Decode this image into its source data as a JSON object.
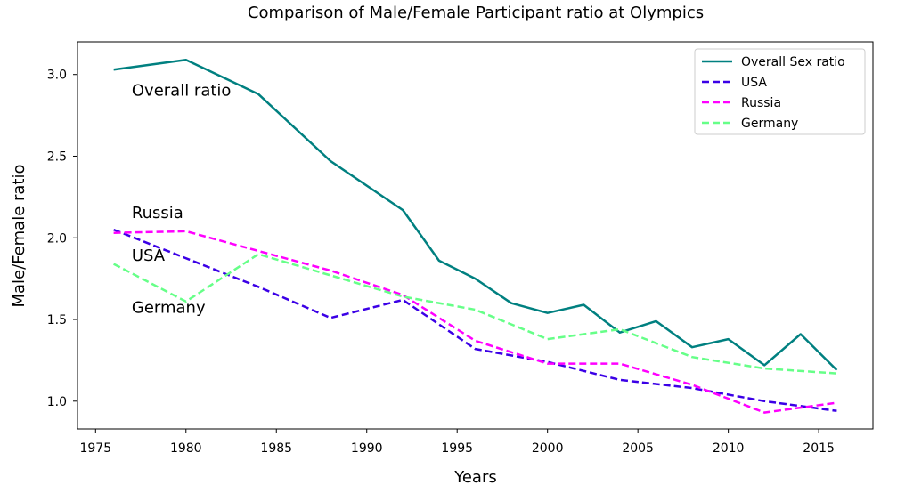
{
  "chart_data": {
    "type": "line",
    "title": "Comparison of Male/Female Participant ratio at Olympics",
    "xlabel": "Years",
    "ylabel": "Male/Female ratio",
    "xlim": [
      1974,
      2018
    ],
    "ylim": [
      0.83,
      3.2
    ],
    "xticks": [
      1975,
      1980,
      1985,
      1990,
      1995,
      2000,
      2005,
      2010,
      2015
    ],
    "yticks": [
      1.0,
      1.5,
      2.0,
      2.5,
      3.0
    ],
    "ytick_labels": [
      "1.0",
      "1.5",
      "2.0",
      "2.5",
      "3.0"
    ],
    "grid": false,
    "legend_position": "top-right",
    "series": [
      {
        "name": "Overall Sex ratio",
        "color": "#008080",
        "style": "solid",
        "x": [
          1976,
          1980,
          1984,
          1988,
          1992,
          1994,
          1996,
          1998,
          2000,
          2002,
          2004,
          2006,
          2008,
          2010,
          2012,
          2014,
          2016
        ],
        "y": [
          3.03,
          3.09,
          2.88,
          2.47,
          2.17,
          1.86,
          1.75,
          1.6,
          1.54,
          1.59,
          1.42,
          1.49,
          1.33,
          1.38,
          1.22,
          1.41,
          1.19
        ]
      },
      {
        "name": "USA",
        "color": "#3b00e6",
        "style": "dashed",
        "x": [
          1976,
          1984,
          1988,
          1992,
          1996,
          2000,
          2004,
          2008,
          2012,
          2016
        ],
        "y": [
          2.05,
          1.7,
          1.51,
          1.62,
          1.32,
          1.24,
          1.13,
          1.08,
          1.0,
          0.94
        ]
      },
      {
        "name": "Russia",
        "color": "#ff00ff",
        "style": "dashed",
        "x": [
          1976,
          1980,
          1988,
          1992,
          1996,
          2000,
          2004,
          2008,
          2012,
          2016
        ],
        "y": [
          2.03,
          2.04,
          1.8,
          1.65,
          1.37,
          1.23,
          1.23,
          1.1,
          0.93,
          0.99
        ]
      },
      {
        "name": "Germany",
        "color": "#66ff88",
        "style": "dashed",
        "x": [
          1976,
          1980,
          1984,
          1992,
          1996,
          2000,
          2004,
          2008,
          2012,
          2016
        ],
        "y": [
          1.84,
          1.61,
          1.9,
          1.64,
          1.56,
          1.38,
          1.44,
          1.27,
          1.2,
          1.17
        ]
      }
    ],
    "annotations": [
      {
        "text": "Overall ratio",
        "x": 1977,
        "y": 2.87
      },
      {
        "text": "Russia",
        "x": 1977,
        "y": 2.12
      },
      {
        "text": "USA",
        "x": 1977,
        "y": 1.86
      },
      {
        "text": "Germany",
        "x": 1977,
        "y": 1.54
      }
    ]
  }
}
